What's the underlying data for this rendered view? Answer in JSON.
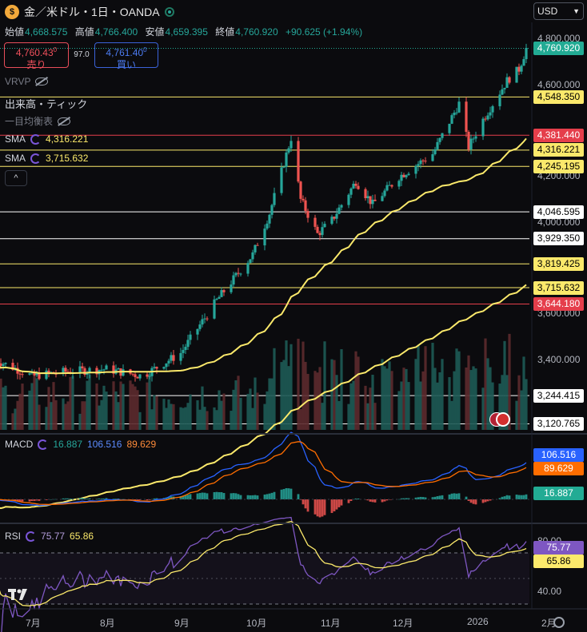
{
  "header": {
    "title": "金／米ドル・1日・OANDA",
    "currency": "USD"
  },
  "ohlc": {
    "open_label": "始値",
    "open": "4,668.575",
    "high_label": "高値",
    "high": "4,766.400",
    "low_label": "安値",
    "low": "4,659.395",
    "close_label": "終値",
    "close": "4,760.920",
    "change": "+90.625 (+1.94%)"
  },
  "trade": {
    "sell_price": "4,760.43",
    "sell_sup": "0",
    "sell_label": "売り",
    "spread": "97.0",
    "buy_price": "4,761.40",
    "buy_sup": "0",
    "buy_label": "買い"
  },
  "indicators": {
    "vrvp": "VRVP",
    "volume": "出来高・ティック",
    "ichimoku": "一目均衡表",
    "sma_label": "SMA",
    "sma1_value": "4,316.221",
    "sma2_value": "3,715.632",
    "collapse_glyph": "^"
  },
  "price_axis": {
    "ticks": [
      "4,800.000",
      "4,600.000",
      "4,200.000",
      "4,000.000",
      "3,600.000",
      "3,400.000"
    ]
  },
  "price_labels": [
    {
      "text": "4,760.920",
      "bg": "#22ab94",
      "fg": "#ffffff"
    },
    {
      "text": "4,548.350",
      "bg": "#fbe96b",
      "fg": "#000000"
    },
    {
      "text": "4,381.440",
      "bg": "#e53e4b",
      "fg": "#ffffff"
    },
    {
      "text": "4,316.221",
      "bg": "#fbe96b",
      "fg": "#000000"
    },
    {
      "text": "4,245.195",
      "bg": "#fbe96b",
      "fg": "#000000"
    },
    {
      "text": "4,046.595",
      "bg": "#ffffff",
      "fg": "#000000"
    },
    {
      "text": "3,929.350",
      "bg": "#ffffff",
      "fg": "#000000"
    },
    {
      "text": "3,819.425",
      "bg": "#fbe96b",
      "fg": "#000000"
    },
    {
      "text": "3,715.632",
      "bg": "#fbe96b",
      "fg": "#000000"
    },
    {
      "text": "3,644.180",
      "bg": "#e53e4b",
      "fg": "#ffffff"
    },
    {
      "text": "3,244.415",
      "bg": "#ffffff",
      "fg": "#000000"
    },
    {
      "text": "3,120.765",
      "bg": "#ffffff",
      "fg": "#000000"
    }
  ],
  "macd": {
    "label": "MACD",
    "v1": "16.887",
    "v2": "106.516",
    "v3": "89.629",
    "tag_macd": {
      "text": "106.516",
      "bg": "#2962ff"
    },
    "tag_signal": {
      "text": "89.629",
      "bg": "#ff6d00"
    },
    "tag_hist": {
      "text": "16.887",
      "bg": "#22ab94"
    }
  },
  "rsi": {
    "label": "RSI",
    "v1": "75.77",
    "v2": "65.86",
    "axis_top": "80.00",
    "axis_bottom": "40.00",
    "tag_rsi": {
      "text": "75.77",
      "bg": "#7e57c2"
    },
    "tag_ma": {
      "text": "65.86",
      "bg": "#fbe96b"
    }
  },
  "time_axis": [
    "7月",
    "8月",
    "9月",
    "10月",
    "11月",
    "12月",
    "2026",
    "2月"
  ],
  "colors": {
    "up": "#26a69a",
    "down": "#ef5350",
    "sma_fast": "#fbe96b",
    "sma_slow": "#fbe96b"
  },
  "chart_data": {
    "type": "line",
    "series": [
      {
        "x": [
          "2025-06-16",
          "2025-07-01",
          "2025-07-16",
          "2025-08-01",
          "2025-08-16",
          "2025-09-01",
          "2025-09-16",
          "2025-10-01",
          "2025-10-08",
          "2025-10-17",
          "2025-10-21",
          "2025-10-28",
          "2025-11-03",
          "2025-11-13",
          "2025-11-20",
          "2025-12-01",
          "2025-12-15",
          "2025-12-26",
          "2025-12-30",
          "2026-01-05",
          "2026-01-15",
          "2026-01-20",
          "2026-01-23"
        ],
        "values": [
          3400,
          3330,
          3350,
          3360,
          3330,
          3430,
          3660,
          3860,
          4040,
          4370,
          4100,
          3950,
          4010,
          4180,
          4080,
          4200,
          4300,
          4520,
          4330,
          4450,
          4620,
          4670,
          4760
        ]
      }
    ]
  }
}
